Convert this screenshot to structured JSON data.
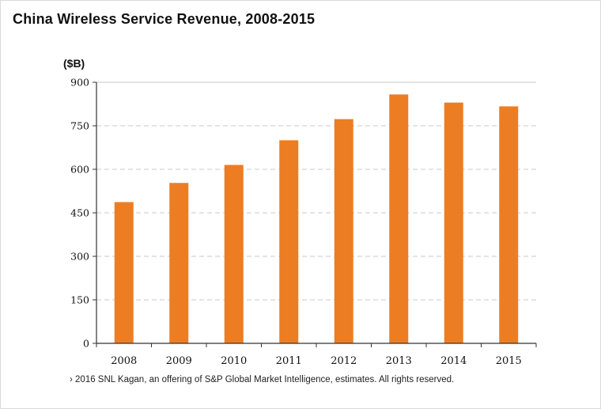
{
  "chart_data": {
    "type": "bar",
    "title": "China Wireless Service Revenue, 2008-2015",
    "ylabel": "($B)",
    "xlabel": "",
    "categories": [
      "2008",
      "2009",
      "2010",
      "2011",
      "2012",
      "2013",
      "2014",
      "2015"
    ],
    "values": [
      487,
      553,
      615,
      700,
      773,
      858,
      830,
      817
    ],
    "ylim": [
      0,
      900
    ],
    "yticks": [
      0,
      150,
      300,
      450,
      600,
      750,
      900
    ],
    "ytick_labels": [
      "0",
      "150",
      "300",
      "450",
      "600",
      "750",
      "900"
    ],
    "grid": true,
    "bar_color": "#ed7d23",
    "source": "› 2016 SNL Kagan, an offering of S&P Global Market Intelligence, estimates. All rights reserved."
  }
}
